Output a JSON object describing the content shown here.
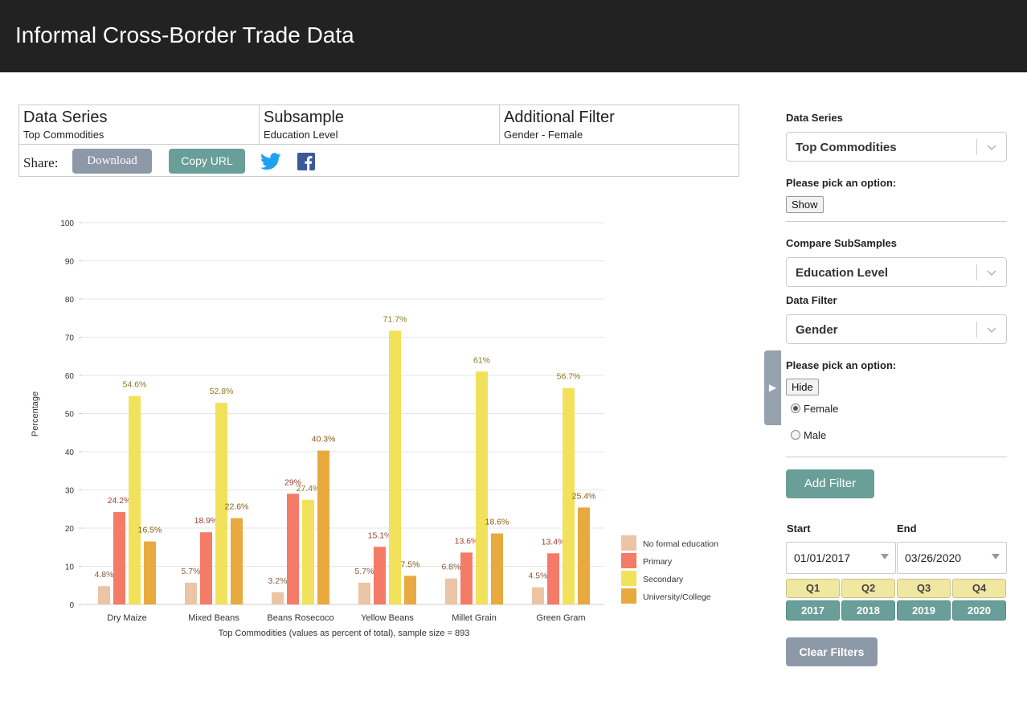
{
  "header": {
    "title": "Informal Cross-Border Trade Data"
  },
  "info": {
    "data_series": {
      "heading": "Data Series",
      "value": "Top Commodities"
    },
    "subsample": {
      "heading": "Subsample",
      "value": "Education Level"
    },
    "additional_filter": {
      "heading": "Additional Filter",
      "value": "Gender - Female"
    }
  },
  "share": {
    "label": "Share:",
    "download": "Download",
    "copy_url": "Copy URL",
    "twitter_icon": "twitter-icon",
    "facebook_icon": "facebook-icon"
  },
  "colors": {
    "header_bg": "#222222",
    "teal": "#6a9e98",
    "slate": "#8e99a8"
  },
  "chart_data": {
    "type": "bar",
    "categories": [
      "Dry Maize",
      "Mixed Beans",
      "Beans Rosecoco",
      "Yellow Beans",
      "Millet Grain",
      "Green Gram"
    ],
    "series": [
      {
        "name": "No formal education",
        "color": "#ecc4a6",
        "values": [
          4.8,
          5.7,
          3.2,
          5.7,
          6.8,
          4.5
        ]
      },
      {
        "name": "Primary",
        "color": "#f47b68",
        "values": [
          24.2,
          18.9,
          29,
          15.1,
          13.6,
          13.4
        ]
      },
      {
        "name": "Secondary",
        "color": "#f2e15a",
        "values": [
          54.6,
          52.8,
          27.4,
          71.7,
          61,
          56.7
        ]
      },
      {
        "name": "University/College",
        "color": "#e8aa3e",
        "values": [
          16.5,
          22.6,
          40.3,
          7.5,
          18.6,
          25.4
        ]
      }
    ],
    "data_labels": [
      [
        "4.8%",
        "5.7%",
        "3.2%",
        "5.7%",
        "6.8%",
        "4.5%"
      ],
      [
        "24.2%",
        "18.9%",
        "29%",
        "15.1%",
        "13.6%",
        "13.4%"
      ],
      [
        "54.6%",
        "52.8%",
        "27.4%",
        "71.7%",
        "61%",
        "56.7%"
      ],
      [
        "16.5%",
        "22.6%",
        "40.3%",
        "7.5%",
        "18.6%",
        "25.4%"
      ]
    ],
    "title": "",
    "xlabel": "Top Commodities (values as percent of total), sample size = 893",
    "ylabel": "Percentage",
    "ylim": [
      0,
      100
    ],
    "yticks": [
      0,
      10,
      20,
      30,
      40,
      50,
      60,
      70,
      80,
      90,
      100
    ],
    "grid": true,
    "legend_position": "right-bottom"
  },
  "sidebar": {
    "data_series": {
      "label": "Data Series",
      "value": "Top Commodities"
    },
    "pick_option_1": {
      "label": "Please pick an option:",
      "button": "Show"
    },
    "compare": {
      "label": "Compare SubSamples",
      "value": "Education Level"
    },
    "data_filter": {
      "label": "Data Filter",
      "value": "Gender"
    },
    "pick_option_2": {
      "label": "Please pick an option:",
      "button": "Hide"
    },
    "radios": [
      {
        "label": "Female",
        "checked": true
      },
      {
        "label": "Male",
        "checked": false
      }
    ],
    "add_filter": "Add Filter",
    "start": {
      "label": "Start",
      "value": "01/01/2017"
    },
    "end": {
      "label": "End",
      "value": "03/26/2020"
    },
    "quarters": [
      "Q1",
      "Q2",
      "Q3",
      "Q4"
    ],
    "years": [
      "2017",
      "2018",
      "2019",
      "2020"
    ],
    "clear_filters": "Clear Filters",
    "toggle_icon": "triangle-right-icon"
  }
}
